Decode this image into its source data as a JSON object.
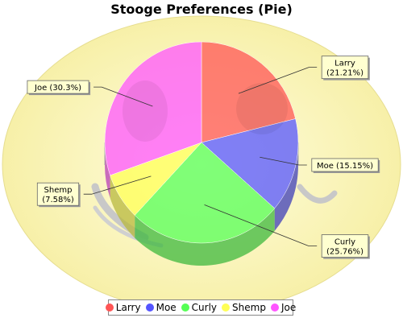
{
  "chart_data": {
    "type": "pie",
    "title": "Stooge Preferences (Pie)",
    "slices": [
      {
        "name": "Larry",
        "label": "Larry\n(21.21%)",
        "percent": 21.21,
        "color": "#ff5555"
      },
      {
        "name": "Moe",
        "label": "Moe (15.15%)",
        "percent": 15.15,
        "color": "#5555ff"
      },
      {
        "name": "Curly",
        "label": "Curly\n(25.76%)",
        "percent": 25.76,
        "color": "#55ff55"
      },
      {
        "name": "Shemp",
        "label": "Shemp\n(7.58%)",
        "percent": 7.58,
        "color": "#ffff55"
      },
      {
        "name": "Joe",
        "label": "Joe (30.3%)",
        "percent": 30.3,
        "color": "#ff55ff"
      }
    ],
    "start_angle_deg": 90,
    "direction": "clockwise",
    "legend_position": "bottom"
  }
}
